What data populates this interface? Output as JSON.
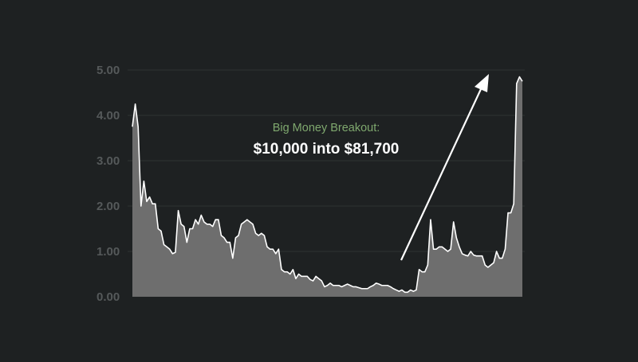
{
  "colors": {
    "background": "#1e2122",
    "area_fill": "#6e6e6e",
    "line": "#ffffff",
    "grid": "#2e3233",
    "tick_text": "#55595a",
    "subtitle": "#7fa86e",
    "title": "#ffffff",
    "arrow": "#ffffff"
  },
  "annotation": {
    "subtitle": "Big Money Breakout:",
    "title": "$10,000 into $81,700"
  },
  "chart_data": {
    "type": "area",
    "title": "",
    "xlabel": "",
    "ylabel": "",
    "ylim": [
      0,
      5
    ],
    "yticks": [
      "0.00",
      "1.00",
      "2.00",
      "3.00",
      "4.00",
      "5.00"
    ],
    "grid": true,
    "legend": "none",
    "series": [
      {
        "values": [
          3.75,
          4.25,
          3.75,
          2.0,
          2.55,
          2.1,
          2.2,
          2.05,
          2.05,
          1.5,
          1.45,
          1.15,
          1.1,
          1.05,
          0.95,
          0.98,
          1.9,
          1.6,
          1.55,
          1.2,
          1.5,
          1.5,
          1.7,
          1.6,
          1.8,
          1.65,
          1.6,
          1.6,
          1.55,
          1.7,
          1.7,
          1.35,
          1.3,
          1.2,
          1.2,
          0.85,
          1.3,
          1.35,
          1.6,
          1.65,
          1.7,
          1.65,
          1.6,
          1.4,
          1.35,
          1.4,
          1.35,
          1.1,
          1.05,
          1.05,
          0.95,
          1.05,
          0.6,
          0.55,
          0.55,
          0.5,
          0.6,
          0.4,
          0.5,
          0.45,
          0.45,
          0.45,
          0.38,
          0.35,
          0.45,
          0.4,
          0.35,
          0.22,
          0.25,
          0.3,
          0.25,
          0.25,
          0.25,
          0.22,
          0.25,
          0.28,
          0.25,
          0.22,
          0.22,
          0.2,
          0.18,
          0.18,
          0.18,
          0.22,
          0.25,
          0.3,
          0.28,
          0.25,
          0.25,
          0.25,
          0.22,
          0.18,
          0.15,
          0.12,
          0.15,
          0.1,
          0.1,
          0.15,
          0.12,
          0.15,
          0.6,
          0.55,
          0.55,
          0.7,
          1.7,
          1.05,
          1.05,
          1.1,
          1.1,
          1.05,
          1.0,
          1.05,
          1.65,
          1.3,
          1.1,
          0.95,
          0.92,
          0.9,
          1.0,
          0.92,
          0.9,
          0.9,
          0.9,
          0.7,
          0.65,
          0.7,
          0.75,
          1.0,
          0.85,
          0.85,
          1.05,
          1.85,
          1.85,
          2.05,
          4.7,
          4.85,
          4.75
        ]
      }
    ]
  }
}
